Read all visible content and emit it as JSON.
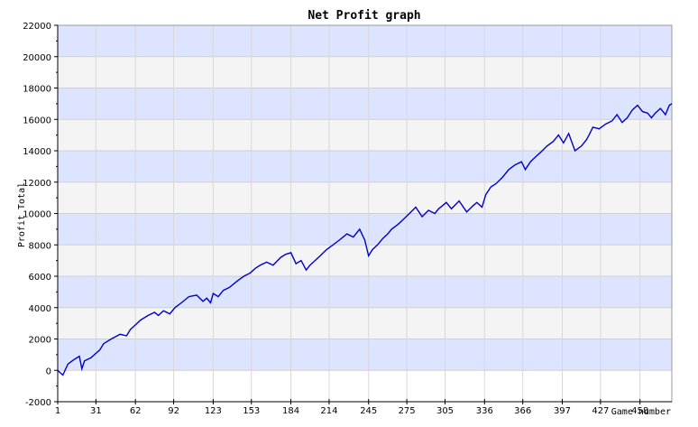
{
  "chart_data": {
    "type": "line",
    "title": "Net Profit graph",
    "xlabel": "Game number",
    "ylabel": "Profit Total",
    "ylim": [
      -2000,
      22000
    ],
    "xlim": [
      1,
      483
    ],
    "y_ticks": [
      -2000,
      0,
      2000,
      4000,
      6000,
      8000,
      10000,
      12000,
      14000,
      16000,
      18000,
      20000,
      22000
    ],
    "x_ticks": [
      1,
      31,
      62,
      92,
      123,
      153,
      184,
      214,
      245,
      275,
      305,
      336,
      366,
      397,
      427,
      458
    ],
    "grid": true,
    "band_colors": [
      "#dde4ff",
      "#f4f4f4"
    ],
    "line_color": "#0000cc",
    "series": [
      {
        "name": "",
        "x": [
          1,
          5,
          9,
          14,
          18,
          20,
          22,
          27,
          34,
          37,
          43,
          50,
          55,
          58,
          62,
          66,
          72,
          77,
          80,
          84,
          89,
          93,
          98,
          104,
          110,
          115,
          118,
          121,
          123,
          127,
          131,
          136,
          142,
          147,
          152,
          156,
          160,
          165,
          170,
          176,
          180,
          184,
          188,
          192,
          196,
          199,
          203,
          207,
          212,
          217,
          222,
          228,
          233,
          238,
          242,
          245,
          248,
          252,
          256,
          260,
          263,
          268,
          272,
          277,
          282,
          287,
          292,
          297,
          300,
          303,
          306,
          310,
          316,
          322,
          327,
          330,
          334,
          337,
          341,
          345,
          350,
          355,
          360,
          365,
          368,
          372,
          376,
          380,
          385,
          390,
          394,
          398,
          402,
          407,
          412,
          416,
          418,
          421,
          426,
          431,
          436,
          440,
          444,
          448,
          452,
          456,
          460,
          464,
          467,
          470,
          474,
          478,
          481,
          483
        ],
        "y": [
          0,
          -300,
          400,
          700,
          900,
          100,
          600,
          800,
          1300,
          1700,
          2000,
          2300,
          2200,
          2600,
          2900,
          3200,
          3500,
          3700,
          3500,
          3800,
          3600,
          4000,
          4300,
          4700,
          4800,
          4400,
          4600,
          4300,
          4900,
          4700,
          5100,
          5300,
          5700,
          6000,
          6200,
          6500,
          6700,
          6900,
          6700,
          7200,
          7400,
          7500,
          6800,
          7000,
          6400,
          6700,
          7000,
          7300,
          7700,
          8000,
          8300,
          8700,
          8500,
          9000,
          8300,
          7300,
          7700,
          8000,
          8400,
          8700,
          9000,
          9300,
          9600,
          10000,
          10400,
          9800,
          10200,
          10000,
          10300,
          10500,
          10700,
          10300,
          10800,
          10100,
          10500,
          10700,
          10400,
          11200,
          11700,
          11900,
          12300,
          12800,
          13100,
          13300,
          12800,
          13300,
          13600,
          13900,
          14300,
          14600,
          15000,
          14500,
          15100,
          14000,
          14300,
          14700,
          15000,
          15500,
          15400,
          15700,
          15900,
          16300,
          15800,
          16100,
          16600,
          16900,
          16500,
          16400,
          16100,
          16400,
          16700,
          16300,
          16900,
          17000
        ]
      }
    ]
  }
}
